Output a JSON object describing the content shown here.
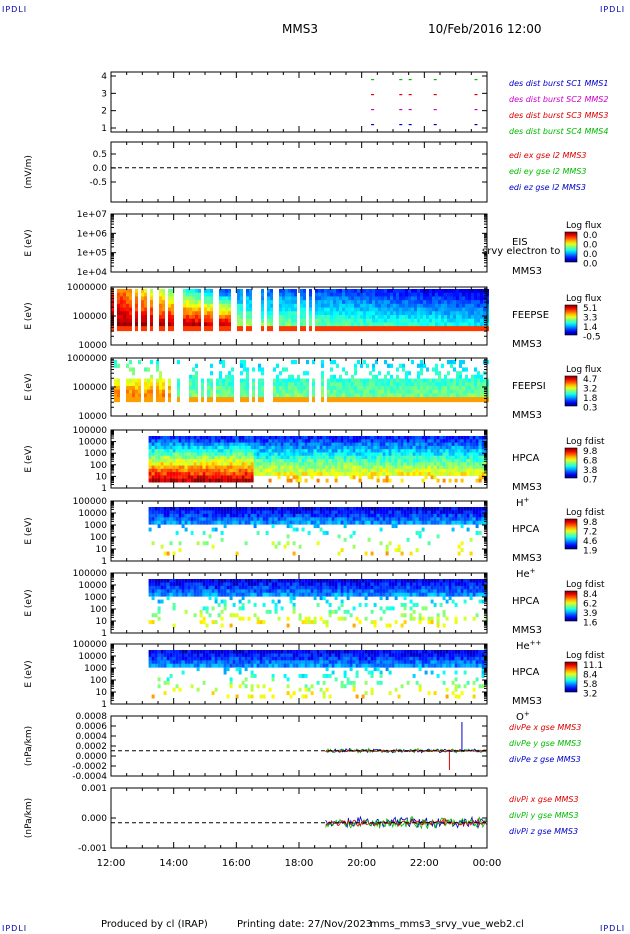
{
  "header": {
    "corner_label": "IPDLI",
    "mission": "MMS3",
    "datetime": "10/Feb/2016 12:00"
  },
  "footer": {
    "produced_by": "Produced by cl (IRAP)",
    "printing_date": "Printing date: 27/Nov/2023",
    "filename": "mms_mms3_srvy_vue_web2.cl"
  },
  "colors": {
    "blue": "#0000cc",
    "magenta": "#cc00cc",
    "red": "#dd0000",
    "green": "#00bb00"
  },
  "chart_data": {
    "type": "multi-panel",
    "x_axis": {
      "ticks": [
        "12:00",
        "14:00",
        "16:00",
        "18:00",
        "20:00",
        "22:00",
        "00:00"
      ]
    },
    "panels": [
      {
        "type": "scatter",
        "ylabel": "",
        "yticks": [
          "4",
          "3",
          "2",
          "1"
        ],
        "ylim": [
          0.5,
          4.5
        ],
        "legend": [
          {
            "text": "des dist burst SC1 MMS1",
            "color": "#0000cc"
          },
          {
            "text": "des dist burst SC2 MMS2",
            "color": "#cc00cc"
          },
          {
            "text": "des dist burst SC3 MMS3",
            "color": "#dd0000"
          },
          {
            "text": "des dist burst SC4 MMS4",
            "color": "#00bb00"
          }
        ]
      },
      {
        "type": "line",
        "ylabel": "(mV/m)",
        "yticks": [
          "0.5",
          "0.0",
          "-0.5"
        ],
        "ylim": [
          -0.8,
          0.8
        ],
        "legend": [
          {
            "text": "edi ex gse l2 MMS3",
            "color": "#dd0000"
          },
          {
            "text": "edi ey gse l2 MMS3",
            "color": "#00bb00"
          },
          {
            "text": "edi ez gse l2 MMS3",
            "color": "#0000cc"
          }
        ]
      },
      {
        "type": "heatmap",
        "ylabel": "E (eV)",
        "yticks": [
          "1e+07",
          "1e+06",
          "1e+05",
          "1e+04"
        ],
        "label": "EIS",
        "overlay": "srvy electron to",
        "instrument": "MMS3",
        "cbar_title": "Log flux",
        "cbar_ticks": [
          "0.0",
          "0.0",
          "0.0",
          "0.0"
        ]
      },
      {
        "type": "heatmap",
        "ylabel": "E (eV)",
        "yticks": [
          "1000000",
          "100000",
          "10000"
        ],
        "label": "FEEPSE",
        "instrument": "MMS3",
        "cbar_title": "Log flux",
        "cbar_ticks": [
          "5.1",
          "3.3",
          "1.4",
          "-0.5"
        ]
      },
      {
        "type": "heatmap",
        "ylabel": "E (eV)",
        "yticks": [
          "1000000",
          "100000",
          "10000"
        ],
        "label": "FEEPSI",
        "instrument": "MMS3",
        "cbar_title": "Log flux",
        "cbar_ticks": [
          "4.7",
          "3.2",
          "1.8",
          "0.3"
        ]
      },
      {
        "type": "heatmap",
        "ylabel": "E (eV)",
        "yticks": [
          "100000",
          "10000",
          "1000",
          "100",
          "10",
          "1"
        ],
        "label": "HPCA",
        "instrument": "MMS3",
        "species": "H",
        "species_sup": "+",
        "cbar_title": "Log fdist",
        "cbar_ticks": [
          "9.8",
          "6.8",
          "3.8",
          "0.7"
        ]
      },
      {
        "type": "heatmap",
        "ylabel": "E (eV)",
        "yticks": [
          "100000",
          "10000",
          "1000",
          "100",
          "10",
          "1"
        ],
        "label": "HPCA",
        "instrument": "MMS3",
        "species": "He",
        "species_sup": "+",
        "cbar_title": "Log fdist",
        "cbar_ticks": [
          "9.8",
          "7.2",
          "4.6",
          "1.9"
        ]
      },
      {
        "type": "heatmap",
        "ylabel": "E (eV)",
        "yticks": [
          "100000",
          "10000",
          "1000",
          "100",
          "10",
          "1"
        ],
        "label": "HPCA",
        "instrument": "MMS3",
        "species": "He",
        "species_sup": "++",
        "cbar_title": "Log fdist",
        "cbar_ticks": [
          "8.4",
          "6.2",
          "3.9",
          "1.6"
        ]
      },
      {
        "type": "heatmap",
        "ylabel": "E (eV)",
        "yticks": [
          "100000",
          "10000",
          "1000",
          "100",
          "10",
          "1"
        ],
        "label": "HPCA",
        "instrument": "MMS3",
        "species": "O",
        "species_sup": "+",
        "cbar_title": "Log fdist",
        "cbar_ticks": [
          "11.1",
          "8.4",
          "5.8",
          "3.2"
        ]
      },
      {
        "type": "line",
        "ylabel": "(nPa/km)",
        "yticks": [
          "0.0008",
          "0.0006",
          "0.0004",
          "0.0002",
          "0.0000",
          "-0.0002",
          "-0.0004"
        ],
        "legend": [
          {
            "text": "divPe x gse MMS3",
            "color": "#dd0000"
          },
          {
            "text": "divPe y gse MMS3",
            "color": "#00bb00"
          },
          {
            "text": "divPe z gse MMS3",
            "color": "#0000cc"
          }
        ]
      },
      {
        "type": "line",
        "ylabel": "(nPa/km)",
        "yticks": [
          "0.001",
          "0.000",
          "-0.001"
        ],
        "legend": [
          {
            "text": "divPi x gse MMS3",
            "color": "#dd0000"
          },
          {
            "text": "divPi y gse MMS3",
            "color": "#00bb00"
          },
          {
            "text": "divPi z gse MMS3",
            "color": "#0000cc"
          }
        ]
      }
    ]
  }
}
